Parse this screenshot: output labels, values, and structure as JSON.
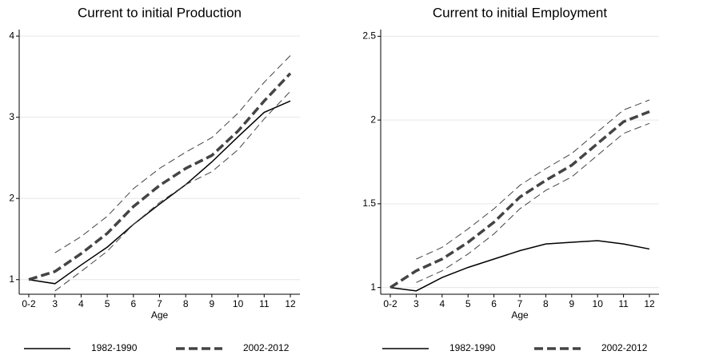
{
  "chart_data": [
    {
      "type": "line",
      "title": "Current to initial Production",
      "xlabel": "Age",
      "categories": [
        "0-2",
        "3",
        "4",
        "5",
        "6",
        "7",
        "8",
        "9",
        "10",
        "11",
        "12"
      ],
      "ylim": [
        0.82,
        4.08
      ],
      "yticks": [
        1,
        2,
        3,
        4
      ],
      "grid": true,
      "series": [
        {
          "name": "1982-1990",
          "color": "#000000",
          "linestyle": "solid",
          "linewidth": 1.5,
          "values": [
            1,
            0.95,
            1.18,
            1.4,
            1.68,
            1.93,
            2.17,
            2.45,
            2.76,
            3.06,
            3.2
          ]
        },
        {
          "name": "2002-2012",
          "color": "#444444",
          "linestyle": "dashed",
          "linewidth": 3.5,
          "values": [
            1,
            1.1,
            1.32,
            1.57,
            1.9,
            2.16,
            2.37,
            2.53,
            2.83,
            3.2,
            3.54
          ]
        },
        {
          "color": "#444444",
          "linestyle": "dashed",
          "linewidth": 1,
          "values": [
            null,
            1.33,
            1.53,
            1.78,
            2.12,
            2.37,
            2.57,
            2.75,
            3.05,
            3.43,
            3.76
          ]
        },
        {
          "color": "#444444",
          "linestyle": "dashed",
          "linewidth": 1,
          "values": [
            null,
            0.86,
            1.1,
            1.35,
            1.68,
            1.95,
            2.17,
            2.33,
            2.6,
            2.98,
            3.32
          ]
        }
      ]
    },
    {
      "type": "line",
      "title": "Current to initial Employment",
      "xlabel": "Age",
      "categories": [
        "0-2",
        "3",
        "4",
        "5",
        "6",
        "7",
        "8",
        "9",
        "10",
        "11",
        "12"
      ],
      "ylim": [
        0.96,
        2.54
      ],
      "yticks": [
        1,
        1.5,
        2,
        2.5
      ],
      "grid": true,
      "series": [
        {
          "name": "1982-1990",
          "color": "#000000",
          "linestyle": "solid",
          "linewidth": 1.5,
          "values": [
            1,
            0.98,
            1.06,
            1.12,
            1.17,
            1.22,
            1.26,
            1.27,
            1.28,
            1.26,
            1.23
          ]
        },
        {
          "name": "2002-2012",
          "color": "#444444",
          "linestyle": "dashed",
          "linewidth": 3.5,
          "values": [
            1,
            1.1,
            1.17,
            1.27,
            1.39,
            1.54,
            1.64,
            1.73,
            1.86,
            1.99,
            2.05
          ]
        },
        {
          "color": "#444444",
          "linestyle": "dashed",
          "linewidth": 1,
          "values": [
            null,
            1.17,
            1.24,
            1.35,
            1.47,
            1.61,
            1.71,
            1.8,
            1.93,
            2.06,
            2.12
          ]
        },
        {
          "color": "#444444",
          "linestyle": "dashed",
          "linewidth": 1,
          "values": [
            null,
            1.03,
            1.1,
            1.2,
            1.32,
            1.47,
            1.58,
            1.66,
            1.79,
            1.92,
            1.98
          ]
        }
      ]
    }
  ]
}
